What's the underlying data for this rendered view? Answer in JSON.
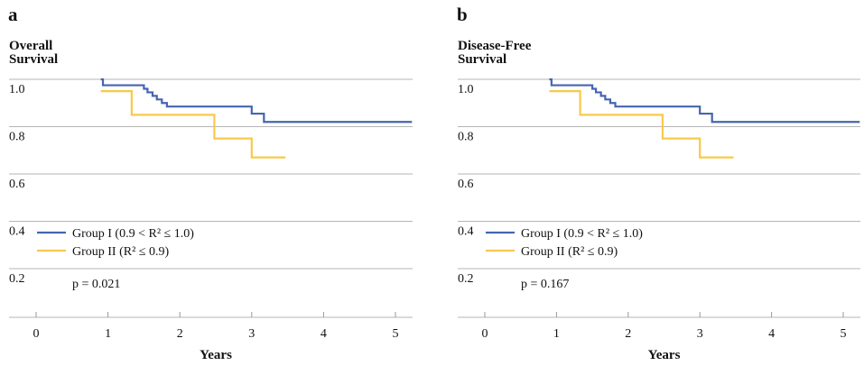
{
  "chart_data": [
    {
      "type": "line",
      "step": true,
      "panel_label": "a",
      "title_lines": [
        "Overall",
        "Survival"
      ],
      "xlabel": "Years",
      "ylabel": "",
      "xlim": [
        -0.3,
        5.3
      ],
      "ylim": [
        0.1,
        1.01
      ],
      "x_ticks": [
        "0",
        "1",
        "2",
        "3",
        "4",
        "5"
      ],
      "y_ticks": [
        "1.0",
        "0.8",
        "0.6",
        "0.4",
        "0.2"
      ],
      "grid": "horizontal",
      "legend_position": "left, below curves",
      "annotation": "p = 0.021",
      "series": [
        {
          "name": "Group I (0.9 < R² ≤ 1.0)",
          "color": "#4565B0",
          "x": [
            0.9,
            0.93,
            1.5,
            1.55,
            1.62,
            1.68,
            1.75,
            1.82,
            3.0,
            3.17,
            5.23
          ],
          "y": [
            1.0,
            0.975,
            0.96,
            0.945,
            0.93,
            0.915,
            0.9,
            0.885,
            0.855,
            0.82,
            0.82
          ]
        },
        {
          "name": "Group II (R² ≤ 0.9)",
          "color": "#F8C94B",
          "x": [
            0.9,
            1.33,
            2.48,
            3.0,
            3.47
          ],
          "y": [
            0.95,
            0.85,
            0.75,
            0.67,
            0.67
          ]
        }
      ]
    },
    {
      "type": "line",
      "step": true,
      "panel_label": "b",
      "title_lines": [
        "Disease-Free",
        "Survival"
      ],
      "xlabel": "Years",
      "ylabel": "",
      "xlim": [
        -0.3,
        5.3
      ],
      "ylim": [
        0.1,
        1.01
      ],
      "x_ticks": [
        "0",
        "1",
        "2",
        "3",
        "4",
        "5"
      ],
      "y_ticks": [
        "1.0",
        "0.8",
        "0.6",
        "0.4",
        "0.2"
      ],
      "grid": "horizontal",
      "legend_position": "left, below curves",
      "annotation": "p = 0.167",
      "series": [
        {
          "name": "Group I (0.9 < R² ≤ 1.0)",
          "color": "#4565B0",
          "x": [
            0.9,
            0.93,
            1.5,
            1.55,
            1.62,
            1.68,
            1.75,
            1.82,
            3.0,
            3.17,
            5.23
          ],
          "y": [
            1.0,
            0.975,
            0.96,
            0.945,
            0.93,
            0.915,
            0.9,
            0.885,
            0.855,
            0.82,
            0.82
          ]
        },
        {
          "name": "Group II (R² ≤ 0.9)",
          "color": "#F8C94B",
          "x": [
            0.9,
            1.33,
            2.48,
            3.0,
            3.47
          ],
          "y": [
            0.95,
            0.85,
            0.75,
            0.67,
            0.67
          ]
        }
      ]
    }
  ]
}
